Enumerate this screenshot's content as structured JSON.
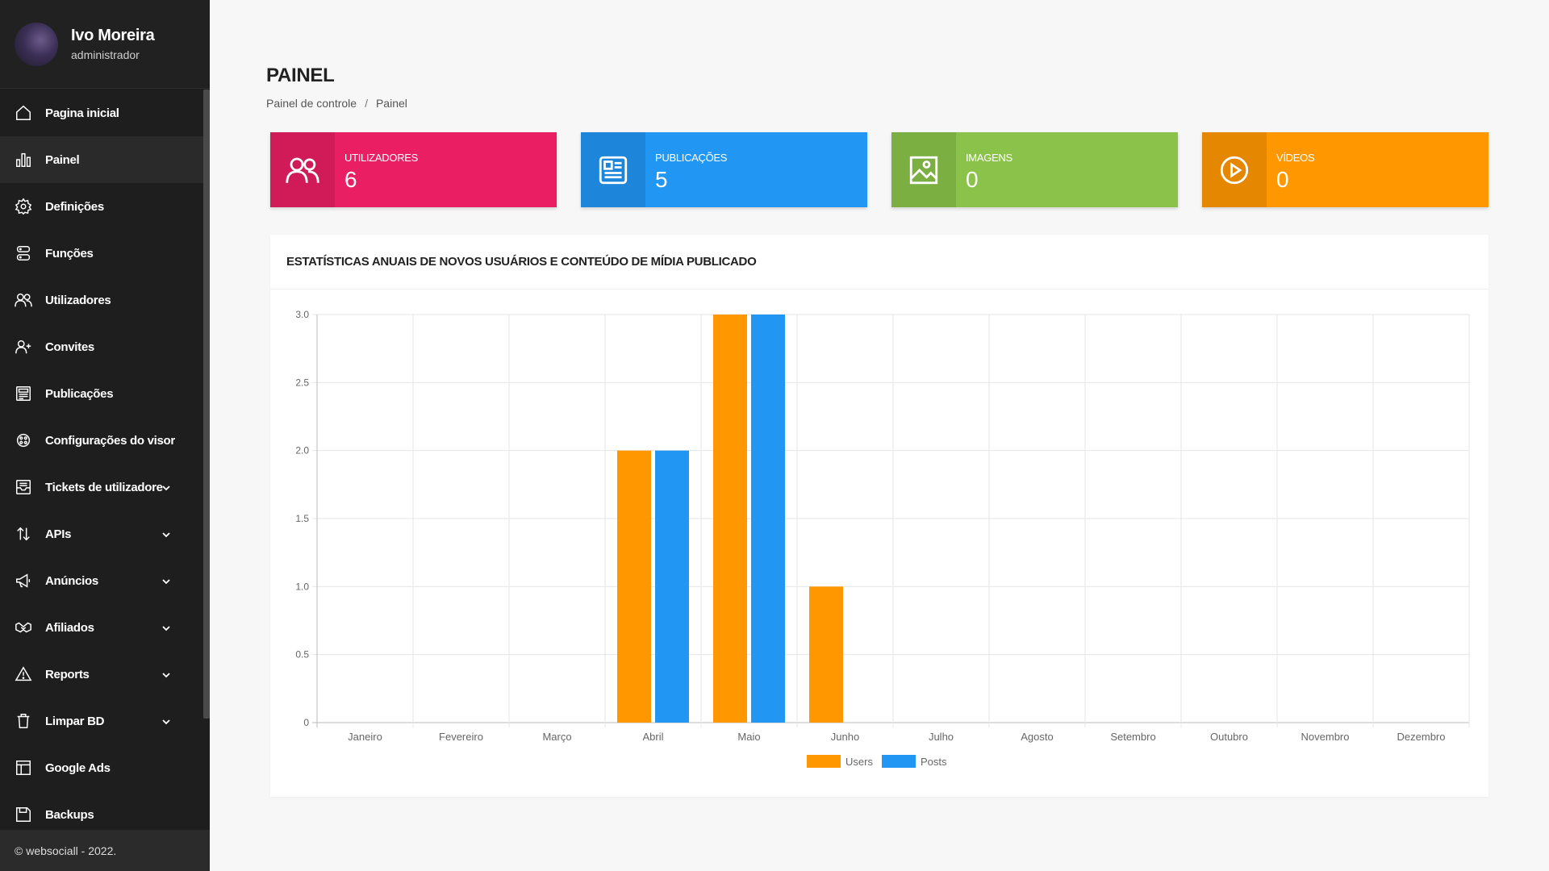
{
  "profile": {
    "name": "Ivo Moreira",
    "role": "administrador"
  },
  "sidebar": {
    "items": [
      {
        "label": "Pagina inicial",
        "icon": "home-icon",
        "chevron": false,
        "active": false
      },
      {
        "label": "Painel",
        "icon": "bar-chart-icon",
        "chevron": false,
        "active": true
      },
      {
        "label": "Definições",
        "icon": "gear-icon",
        "chevron": false,
        "active": false
      },
      {
        "label": "Funções",
        "icon": "server-icon",
        "chevron": false,
        "active": false
      },
      {
        "label": "Utilizadores",
        "icon": "users-icon",
        "chevron": false,
        "active": false
      },
      {
        "label": "Convites",
        "icon": "user-plus-icon",
        "chevron": false,
        "active": false
      },
      {
        "label": "Publicações",
        "icon": "newspaper-icon",
        "chevron": false,
        "active": false
      },
      {
        "label": "Configurações do visor",
        "icon": "palette-icon",
        "chevron": false,
        "active": false
      },
      {
        "label": "Tickets de utilizadore",
        "icon": "inbox-icon",
        "chevron": true,
        "active": false
      },
      {
        "label": "APIs",
        "icon": "arrows-updown-icon",
        "chevron": true,
        "active": false
      },
      {
        "label": "Anúncios",
        "icon": "megaphone-icon",
        "chevron": true,
        "active": false
      },
      {
        "label": "Afiliados",
        "icon": "handshake-icon",
        "chevron": true,
        "active": false
      },
      {
        "label": "Reports",
        "icon": "warning-icon",
        "chevron": true,
        "active": false
      },
      {
        "label": "Limpar BD",
        "icon": "trash-icon",
        "chevron": true,
        "active": false
      },
      {
        "label": "Google Ads",
        "icon": "layout-icon",
        "chevron": false,
        "active": false
      },
      {
        "label": "Backups",
        "icon": "save-icon",
        "chevron": false,
        "active": false
      }
    ],
    "footer": "© websociall - 2022."
  },
  "header": {
    "title": "PAINEL",
    "breadcrumb": [
      "Painel de controle",
      "/",
      "Painel"
    ]
  },
  "cards": [
    {
      "label": "UTILIZADORES",
      "value": "6",
      "icon": "users-icon",
      "color": "#e91e63"
    },
    {
      "label": "PUBLICAÇÕES",
      "value": "5",
      "icon": "id-card-icon",
      "color": "#2196f3"
    },
    {
      "label": "IMAGENS",
      "value": "0",
      "icon": "image-icon",
      "color": "#8bc34a"
    },
    {
      "label": "VÍDEOS",
      "value": "0",
      "icon": "play-icon",
      "color": "#ff9800"
    }
  ],
  "chart_panel": {
    "title": "ESTATÍSTICAS ANUAIS DE NOVOS USUÁRIOS E CONTEÚDO DE MÍDIA PUBLICADO"
  },
  "chart_data": {
    "type": "bar",
    "categories": [
      "Janeiro",
      "Fevereiro",
      "Março",
      "Abril",
      "Maio",
      "Junho",
      "Julho",
      "Agosto",
      "Setembro",
      "Outubro",
      "Novembro",
      "Dezembro"
    ],
    "series": [
      {
        "name": "Users",
        "color": "#ff9800",
        "values": [
          0,
          0,
          0,
          2,
          3,
          1,
          0,
          0,
          0,
          0,
          0,
          0
        ]
      },
      {
        "name": "Posts",
        "color": "#2196f3",
        "values": [
          0,
          0,
          0,
          2,
          3,
          0,
          0,
          0,
          0,
          0,
          0,
          0
        ]
      }
    ],
    "yticks": [
      "0",
      "0.5",
      "1.0",
      "1.5",
      "2.0",
      "2.5",
      "3.0"
    ],
    "ylim": [
      0,
      3
    ],
    "grid": true,
    "legend": "bottom"
  }
}
